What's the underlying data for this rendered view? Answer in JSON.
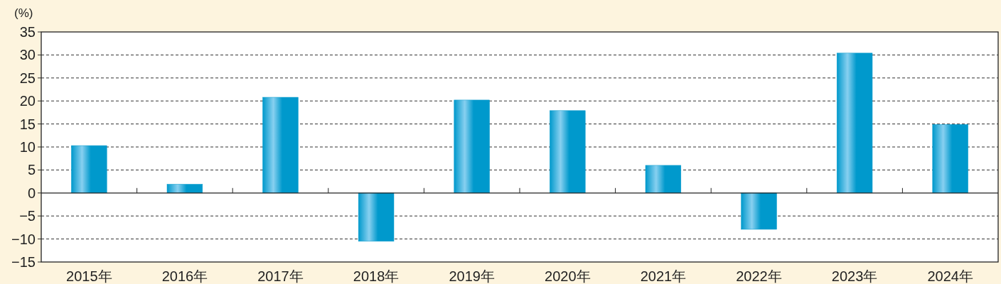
{
  "chart_data": {
    "type": "bar",
    "ylabel": "(%)",
    "categories": [
      "2015年",
      "2016年",
      "2017年",
      "2018年",
      "2019年",
      "2020年",
      "2021年",
      "2022年",
      "2023年",
      "2024年"
    ],
    "values": [
      10.3,
      1.9,
      20.8,
      -10.5,
      20.2,
      17.9,
      6.0,
      -7.9,
      30.4,
      14.9
    ],
    "color": "#0099cc",
    "ylim": [
      -15,
      35
    ],
    "yticks": [
      {
        "value": -15,
        "label": "−15"
      },
      {
        "value": -10,
        "label": "−10"
      },
      {
        "value": -5,
        "label": "−5"
      },
      0,
      5,
      10,
      15,
      20,
      25,
      30,
      35
    ],
    "grid": "y"
  }
}
